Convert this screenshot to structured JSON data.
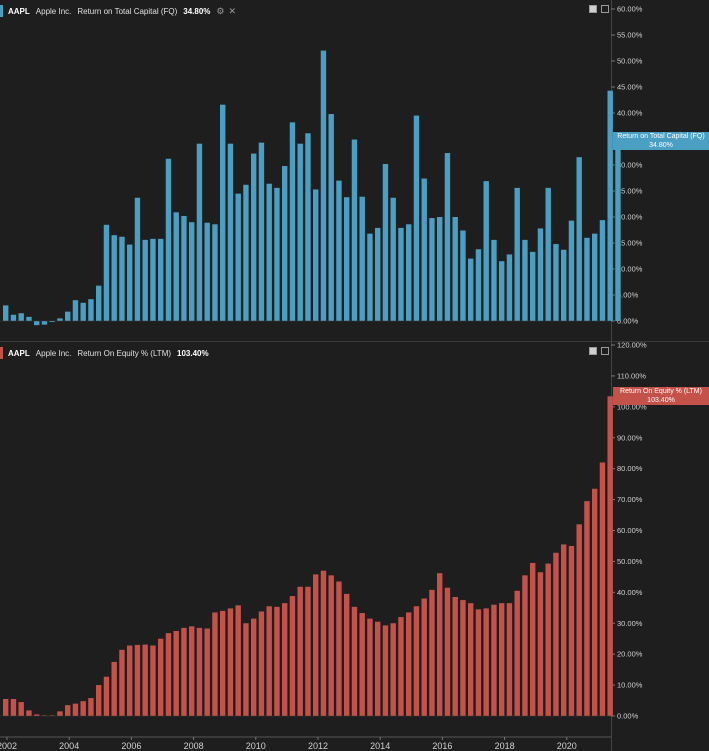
{
  "panels": [
    {
      "ticker": "AAPL",
      "company": "Apple Inc.",
      "metric": "Return on Total Capital (FQ)",
      "value": "34.80%",
      "color": "#4a9fc3",
      "last_label": {
        "line1": "Return on Total Capital (FQ)",
        "line2": "34.80%"
      }
    },
    {
      "ticker": "AAPL",
      "company": "Apple Inc.",
      "metric": "Return On Equity % (LTM)",
      "value": "103.40%",
      "color": "#c4524a",
      "last_label": {
        "line1": "Return On Equity % (LTM)",
        "line2": "103.40%"
      }
    }
  ],
  "icons": {
    "settings": "settings-icon",
    "close": "close-icon",
    "maximize": "maximize-icon",
    "fullscreen": "fullscreen-icon"
  },
  "chart_data": [
    {
      "type": "bar",
      "title": "Return on Total Capital (FQ)",
      "ylim": [
        0,
        60
      ],
      "yticks": [
        "0.00%",
        "5.00%",
        "10.00%",
        "15.00%",
        "20.00%",
        "25.00%",
        "30.00%",
        "35.00%",
        "40.00%",
        "45.00%",
        "50.00%",
        "55.00%",
        "60.00%"
      ],
      "values": [
        3.0,
        1.2,
        1.5,
        0.8,
        -0.8,
        -0.7,
        -0.2,
        0.5,
        1.8,
        4.0,
        3.5,
        4.2,
        6.8,
        18.5,
        16.5,
        16.2,
        14.7,
        23.7,
        15.6,
        15.8,
        15.8,
        31.2,
        20.9,
        20.2,
        19.0,
        34.1,
        18.9,
        18.6,
        41.6,
        34.1,
        24.5,
        26.2,
        32.2,
        34.3,
        26.4,
        25.6,
        29.8,
        38.2,
        34.1,
        36.1,
        25.3,
        52.0,
        39.8,
        27.0,
        23.8,
        34.9,
        23.9,
        16.8,
        17.9,
        30.2,
        23.7,
        17.9,
        18.6,
        39.5,
        27.4,
        19.8,
        20.0,
        32.3,
        20.0,
        17.4,
        12.0,
        13.8,
        26.9,
        15.6,
        11.5,
        12.8,
        25.6,
        15.6,
        13.3,
        17.8,
        25.6,
        14.8,
        13.7,
        19.3,
        31.5,
        16.0,
        16.8,
        19.4,
        44.3,
        34.8
      ]
    },
    {
      "type": "bar",
      "title": "Return On Equity % (LTM)",
      "ylim": [
        0,
        120
      ],
      "yticks": [
        "0.00%",
        "10.00%",
        "20.00%",
        "30.00%",
        "40.00%",
        "50.00%",
        "60.00%",
        "70.00%",
        "80.00%",
        "90.00%",
        "100.00%",
        "110.00%",
        "120.00%"
      ],
      "xticks": [
        "2002",
        "2004",
        "2006",
        "2008",
        "2010",
        "2012",
        "2014",
        "2016",
        "2018",
        "2020"
      ],
      "values": [
        5.5,
        5.5,
        4.5,
        1.8,
        0.5,
        0.2,
        0.2,
        1.5,
        3.5,
        4.0,
        4.8,
        5.8,
        10.0,
        12.7,
        17.5,
        21.4,
        22.8,
        23.0,
        23.1,
        22.8,
        25.0,
        26.8,
        27.5,
        28.5,
        29.0,
        28.5,
        28.3,
        33.5,
        34.0,
        34.8,
        35.8,
        30.0,
        31.5,
        33.8,
        35.5,
        35.3,
        36.5,
        38.8,
        41.8,
        41.8,
        45.8,
        47.0,
        45.5,
        43.5,
        39.5,
        35.3,
        33.3,
        31.5,
        30.5,
        29.3,
        30.0,
        32.0,
        33.5,
        35.5,
        38.0,
        40.8,
        46.2,
        41.5,
        38.5,
        37.5,
        36.5,
        34.5,
        34.8,
        36.0,
        36.5,
        36.5,
        40.5,
        45.5,
        49.5,
        46.5,
        49.3,
        52.8,
        55.5,
        55.0,
        62.0,
        69.5,
        73.5,
        82.0,
        103.4
      ]
    }
  ]
}
